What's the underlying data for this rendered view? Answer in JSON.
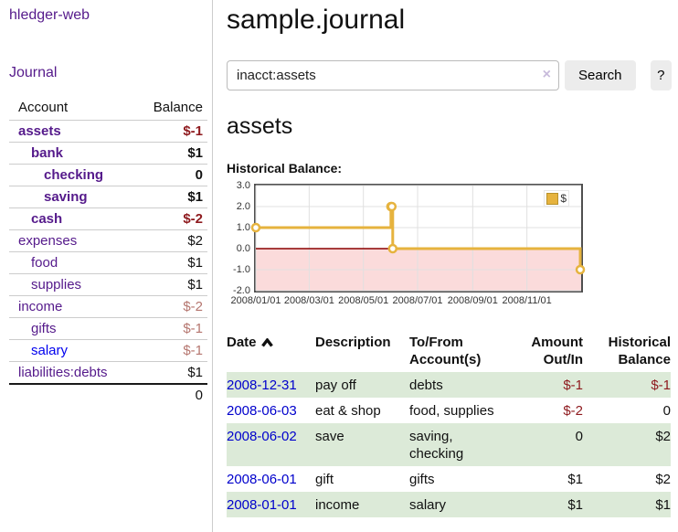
{
  "brand": "hledger-web",
  "nav": {
    "journal": "Journal"
  },
  "sidebar": {
    "headers": {
      "account": "Account",
      "balance": "Balance"
    },
    "rows": [
      {
        "name": "assets",
        "name_class": "acct d0 purple bold",
        "balance": "$-1",
        "bal_class": "bal neg-strong bold"
      },
      {
        "name": "bank",
        "name_class": "acct d1 purple bold",
        "balance": "$1",
        "bal_class": "bal bold"
      },
      {
        "name": "checking",
        "name_class": "acct d2 purple bold",
        "balance": "0",
        "bal_class": "bal bold"
      },
      {
        "name": "saving",
        "name_class": "acct d2 purple bold",
        "balance": "$1",
        "bal_class": "bal bold"
      },
      {
        "name": "cash",
        "name_class": "acct d1 purple bold",
        "balance": "$-2",
        "bal_class": "bal neg-strong bold"
      },
      {
        "name": "expenses",
        "name_class": "acct d0 purple",
        "balance": "$2",
        "bal_class": "bal"
      },
      {
        "name": "food",
        "name_class": "acct d1 purple",
        "balance": "$1",
        "bal_class": "bal"
      },
      {
        "name": "supplies",
        "name_class": "acct d1 purple",
        "balance": "$1",
        "bal_class": "bal"
      },
      {
        "name": "income",
        "name_class": "acct d0 purple",
        "balance": "$-2",
        "bal_class": "bal neg-soft"
      },
      {
        "name": "gifts",
        "name_class": "acct d1 purple",
        "balance": "$-1",
        "bal_class": "bal neg-soft"
      },
      {
        "name": "salary",
        "name_class": "acct d1 blue",
        "balance": "$-1",
        "bal_class": "bal neg-soft"
      },
      {
        "name": "liabilities:debts",
        "name_class": "acct d0 purple",
        "balance": "$1",
        "bal_class": "bal"
      }
    ],
    "total": "0"
  },
  "header": {
    "title": "sample.journal"
  },
  "search": {
    "value": "inacct:assets",
    "clear": "×",
    "button": "Search",
    "help": "?"
  },
  "account_page": {
    "heading": "assets",
    "chart_title": "Historical Balance:"
  },
  "chart_data": {
    "type": "line",
    "step": true,
    "title": "Historical Balance",
    "xlim": [
      "2008-01-01",
      "2009-01-01"
    ],
    "ylim": [
      -2,
      3
    ],
    "grid": true,
    "legend_position": "top-right",
    "series": [
      {
        "name": "$",
        "color": "#e6b33e",
        "points": [
          {
            "date": "2008-01-01",
            "value": 1
          },
          {
            "date": "2008-06-01",
            "value": 2
          },
          {
            "date": "2008-06-02",
            "value": 2
          },
          {
            "date": "2008-06-03",
            "value": 0
          },
          {
            "date": "2008-12-31",
            "value": -1
          }
        ]
      }
    ],
    "yticks": [
      {
        "value": 3,
        "label": "3.0"
      },
      {
        "value": 2,
        "label": "2.0"
      },
      {
        "value": 1,
        "label": "1.0"
      },
      {
        "value": 0,
        "label": "0.0"
      },
      {
        "value": -1,
        "label": "-1.0"
      },
      {
        "value": -2,
        "label": "-2.0"
      }
    ],
    "xticks": [
      {
        "date": "2008-01-01",
        "label": "2008/01/01"
      },
      {
        "date": "2008-03-01",
        "label": "2008/03/01"
      },
      {
        "date": "2008-05-01",
        "label": "2008/05/01"
      },
      {
        "date": "2008-07-01",
        "label": "2008/07/01"
      },
      {
        "date": "2008-09-01",
        "label": "2008/09/01"
      },
      {
        "date": "2008-11-01",
        "label": "2008/11/01"
      }
    ],
    "legend": {
      "label": "$"
    },
    "colors": {
      "negative_fill": "#fbdbdb",
      "zero_line": "#8b0000",
      "grid": "#e0e0e0",
      "border": "#4f4f4f"
    }
  },
  "register": {
    "headers": {
      "date": "Date",
      "description": "Description",
      "accounts": "To/From Account(s)",
      "amount": "Amount Out/In",
      "balance": "Historical Balance"
    },
    "rows": [
      {
        "date": "2008-12-31",
        "description": "pay off",
        "accounts": "debts",
        "amount": "$-1",
        "amount_class": "amt neg",
        "balance": "$-1",
        "balance_class": "amt neg"
      },
      {
        "date": "2008-06-03",
        "description": "eat & shop",
        "accounts": "food, supplies",
        "amount": "$-2",
        "amount_class": "amt neg",
        "balance": "0",
        "balance_class": "amt"
      },
      {
        "date": "2008-06-02",
        "description": "save",
        "accounts": "saving,\nchecking",
        "amount": "0",
        "amount_class": "amt",
        "balance": "$2",
        "balance_class": "amt"
      },
      {
        "date": "2008-06-01",
        "description": "gift",
        "accounts": "gifts",
        "amount": "$1",
        "amount_class": "amt",
        "balance": "$2",
        "balance_class": "amt"
      },
      {
        "date": "2008-01-01",
        "description": "income",
        "accounts": "salary",
        "amount": "$1",
        "amount_class": "amt",
        "balance": "$1",
        "balance_class": "amt"
      }
    ]
  }
}
